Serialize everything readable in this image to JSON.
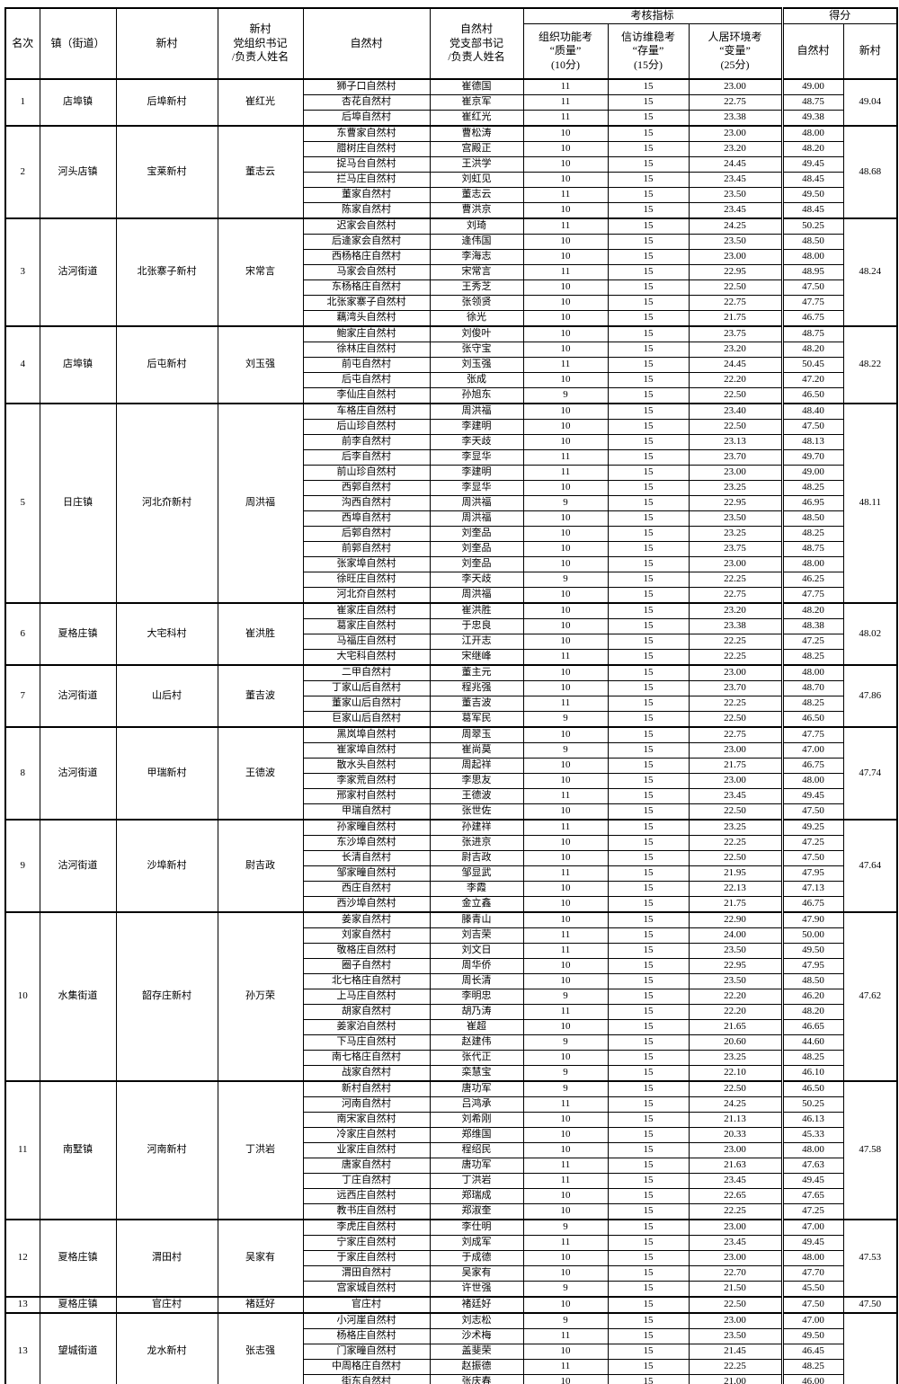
{
  "table": {
    "header": {
      "rank": "名次",
      "town": "镇（街道）",
      "new_village": "新村",
      "new_village_secretary": "新村\n党组织书记\n/负责人姓名",
      "natural_village": "自然村",
      "natural_village_secretary": "自然村\n党支部书记\n/负责人姓名",
      "assessment_group": "考核指标",
      "score_group": "得分",
      "metric_quality": "组织功能考\n“质量”\n(10分)",
      "metric_stability": "信访维稳考\n“存量”\n(15分)",
      "metric_environment": "人居环境考\n“变量”\n(25分)",
      "score_natural": "自然村",
      "score_new": "新村"
    },
    "groups": [
      {
        "rank": "1",
        "town": "店埠镇",
        "nv": "后埠新村",
        "nv_sec": "崔红光",
        "nv_score": "49.04",
        "villages": [
          {
            "name": "狮子口自然村",
            "sec": "崔德国",
            "m1": "11",
            "m2": "15",
            "m3": "23.00",
            "score": "49.00"
          },
          {
            "name": "杏花自然村",
            "sec": "崔京军",
            "m1": "11",
            "m2": "15",
            "m3": "22.75",
            "score": "48.75"
          },
          {
            "name": "后埠自然村",
            "sec": "崔红光",
            "m1": "11",
            "m2": "15",
            "m3": "23.38",
            "score": "49.38"
          }
        ]
      },
      {
        "rank": "2",
        "town": "河头店镇",
        "nv": "宝莱新村",
        "nv_sec": "董志云",
        "nv_score": "48.68",
        "villages": [
          {
            "name": "东曹家自然村",
            "sec": "曹松涛",
            "m1": "10",
            "m2": "15",
            "m3": "23.00",
            "score": "48.00"
          },
          {
            "name": "腊树庄自然村",
            "sec": "宫殿正",
            "m1": "10",
            "m2": "15",
            "m3": "23.20",
            "score": "48.20"
          },
          {
            "name": "捉马台自然村",
            "sec": "王洪学",
            "m1": "10",
            "m2": "15",
            "m3": "24.45",
            "score": "49.45"
          },
          {
            "name": "拦马庄自然村",
            "sec": "刘虹见",
            "m1": "10",
            "m2": "15",
            "m3": "23.45",
            "score": "48.45"
          },
          {
            "name": "董家自然村",
            "sec": "董志云",
            "m1": "11",
            "m2": "15",
            "m3": "23.50",
            "score": "49.50"
          },
          {
            "name": "陈家自然村",
            "sec": "曹洪京",
            "m1": "10",
            "m2": "15",
            "m3": "23.45",
            "score": "48.45"
          }
        ]
      },
      {
        "rank": "3",
        "town": "沽河街道",
        "nv": "北张寨子新村",
        "nv_sec": "宋常言",
        "nv_score": "48.24",
        "villages": [
          {
            "name": "迟家会自然村",
            "sec": "刘琦",
            "m1": "11",
            "m2": "15",
            "m3": "24.25",
            "score": "50.25"
          },
          {
            "name": "后逄家会自然村",
            "sec": "逄伟国",
            "m1": "10",
            "m2": "15",
            "m3": "23.50",
            "score": "48.50"
          },
          {
            "name": "西杨格庄自然村",
            "sec": "李海志",
            "m1": "10",
            "m2": "15",
            "m3": "23.00",
            "score": "48.00"
          },
          {
            "name": "马家会自然村",
            "sec": "宋常言",
            "m1": "11",
            "m2": "15",
            "m3": "22.95",
            "score": "48.95"
          },
          {
            "name": "东杨格庄自然村",
            "sec": "王秀芝",
            "m1": "10",
            "m2": "15",
            "m3": "22.50",
            "score": "47.50"
          },
          {
            "name": "北张家寨子自然村",
            "sec": "张领贤",
            "m1": "10",
            "m2": "15",
            "m3": "22.75",
            "score": "47.75"
          },
          {
            "name": "藕湾头自然村",
            "sec": "徐光",
            "m1": "10",
            "m2": "15",
            "m3": "21.75",
            "score": "46.75"
          }
        ]
      },
      {
        "rank": "4",
        "town": "店埠镇",
        "nv": "后屯新村",
        "nv_sec": "刘玉强",
        "nv_score": "48.22",
        "villages": [
          {
            "name": "鲍家庄自然村",
            "sec": "刘俊叶",
            "m1": "10",
            "m2": "15",
            "m3": "23.75",
            "score": "48.75"
          },
          {
            "name": "徐林庄自然村",
            "sec": "张守宝",
            "m1": "10",
            "m2": "15",
            "m3": "23.20",
            "score": "48.20"
          },
          {
            "name": "前屯自然村",
            "sec": "刘玉强",
            "m1": "11",
            "m2": "15",
            "m3": "24.45",
            "score": "50.45"
          },
          {
            "name": "后屯自然村",
            "sec": "张成",
            "m1": "10",
            "m2": "15",
            "m3": "22.20",
            "score": "47.20"
          },
          {
            "name": "李仙庄自然村",
            "sec": "孙旭东",
            "m1": "9",
            "m2": "15",
            "m3": "22.50",
            "score": "46.50"
          }
        ]
      },
      {
        "rank": "5",
        "town": "日庄镇",
        "nv": "河北夼新村",
        "nv_sec": "周洪福",
        "nv_score": "48.11",
        "villages": [
          {
            "name": "车格庄自然村",
            "sec": "周洪福",
            "m1": "10",
            "m2": "15",
            "m3": "23.40",
            "score": "48.40"
          },
          {
            "name": "后山珍自然村",
            "sec": "李建明",
            "m1": "10",
            "m2": "15",
            "m3": "22.50",
            "score": "47.50"
          },
          {
            "name": "前李自然村",
            "sec": "李天歧",
            "m1": "10",
            "m2": "15",
            "m3": "23.13",
            "score": "48.13"
          },
          {
            "name": "后李自然村",
            "sec": "李显华",
            "m1": "11",
            "m2": "15",
            "m3": "23.70",
            "score": "49.70"
          },
          {
            "name": "前山珍自然村",
            "sec": "李建明",
            "m1": "11",
            "m2": "15",
            "m3": "23.00",
            "score": "49.00"
          },
          {
            "name": "西郭自然村",
            "sec": "李显华",
            "m1": "10",
            "m2": "15",
            "m3": "23.25",
            "score": "48.25"
          },
          {
            "name": "沟西自然村",
            "sec": "周洪福",
            "m1": "9",
            "m2": "15",
            "m3": "22.95",
            "score": "46.95"
          },
          {
            "name": "西埠自然村",
            "sec": "周洪福",
            "m1": "10",
            "m2": "15",
            "m3": "23.50",
            "score": "48.50"
          },
          {
            "name": "后郭自然村",
            "sec": "刘奎品",
            "m1": "10",
            "m2": "15",
            "m3": "23.25",
            "score": "48.25"
          },
          {
            "name": "前郭自然村",
            "sec": "刘奎品",
            "m1": "10",
            "m2": "15",
            "m3": "23.75",
            "score": "48.75"
          },
          {
            "name": "张家埠自然村",
            "sec": "刘奎品",
            "m1": "10",
            "m2": "15",
            "m3": "23.00",
            "score": "48.00"
          },
          {
            "name": "徐旺庄自然村",
            "sec": "李天歧",
            "m1": "9",
            "m2": "15",
            "m3": "22.25",
            "score": "46.25"
          },
          {
            "name": "河北夼自然村",
            "sec": "周洪福",
            "m1": "10",
            "m2": "15",
            "m3": "22.75",
            "score": "47.75"
          }
        ]
      },
      {
        "rank": "6",
        "town": "夏格庄镇",
        "nv": "大宅科村",
        "nv_sec": "崔洪胜",
        "nv_score": "48.02",
        "villages": [
          {
            "name": "崔家庄自然村",
            "sec": "崔洪胜",
            "m1": "10",
            "m2": "15",
            "m3": "23.20",
            "score": "48.20"
          },
          {
            "name": "葛家庄自然村",
            "sec": "于忠良",
            "m1": "10",
            "m2": "15",
            "m3": "23.38",
            "score": "48.38"
          },
          {
            "name": "马福庄自然村",
            "sec": "江开志",
            "m1": "10",
            "m2": "15",
            "m3": "22.25",
            "score": "47.25"
          },
          {
            "name": "大宅科自然村",
            "sec": "宋继峰",
            "m1": "11",
            "m2": "15",
            "m3": "22.25",
            "score": "48.25"
          }
        ]
      },
      {
        "rank": "7",
        "town": "沽河街道",
        "nv": "山后村",
        "nv_sec": "董吉波",
        "nv_score": "47.86",
        "villages": [
          {
            "name": "二甲自然村",
            "sec": "董主元",
            "m1": "10",
            "m2": "15",
            "m3": "23.00",
            "score": "48.00"
          },
          {
            "name": "丁家山后自然村",
            "sec": "程兆强",
            "m1": "10",
            "m2": "15",
            "m3": "23.70",
            "score": "48.70"
          },
          {
            "name": "董家山后自然村",
            "sec": "董吉波",
            "m1": "11",
            "m2": "15",
            "m3": "22.25",
            "score": "48.25"
          },
          {
            "name": "巨家山后自然村",
            "sec": "葛军民",
            "m1": "9",
            "m2": "15",
            "m3": "22.50",
            "score": "46.50"
          }
        ]
      },
      {
        "rank": "8",
        "town": "沽河街道",
        "nv": "甲瑞新村",
        "nv_sec": "王德波",
        "nv_score": "47.74",
        "villages": [
          {
            "name": "黑岚埠自然村",
            "sec": "周翠玉",
            "m1": "10",
            "m2": "15",
            "m3": "22.75",
            "score": "47.75"
          },
          {
            "name": "崔家埠自然村",
            "sec": "崔尚莫",
            "m1": "9",
            "m2": "15",
            "m3": "23.00",
            "score": "47.00"
          },
          {
            "name": "散水头自然村",
            "sec": "周起祥",
            "m1": "10",
            "m2": "15",
            "m3": "21.75",
            "score": "46.75"
          },
          {
            "name": "李家荒自然村",
            "sec": "李思友",
            "m1": "10",
            "m2": "15",
            "m3": "23.00",
            "score": "48.00"
          },
          {
            "name": "邢家村自然村",
            "sec": "王德波",
            "m1": "11",
            "m2": "15",
            "m3": "23.45",
            "score": "49.45"
          },
          {
            "name": "甲瑞自然村",
            "sec": "张世佐",
            "m1": "10",
            "m2": "15",
            "m3": "22.50",
            "score": "47.50"
          }
        ]
      },
      {
        "rank": "9",
        "town": "沽河街道",
        "nv": "沙埠新村",
        "nv_sec": "尉吉政",
        "nv_score": "47.64",
        "villages": [
          {
            "name": "孙家疃自然村",
            "sec": "孙建祥",
            "m1": "11",
            "m2": "15",
            "m3": "23.25",
            "score": "49.25"
          },
          {
            "name": "东沙埠自然村",
            "sec": "张进京",
            "m1": "10",
            "m2": "15",
            "m3": "22.25",
            "score": "47.25"
          },
          {
            "name": "长清自然村",
            "sec": "尉吉政",
            "m1": "10",
            "m2": "15",
            "m3": "22.50",
            "score": "47.50"
          },
          {
            "name": "邹家疃自然村",
            "sec": "邹显武",
            "m1": "11",
            "m2": "15",
            "m3": "21.95",
            "score": "47.95"
          },
          {
            "name": "西庄自然村",
            "sec": "李霞",
            "m1": "10",
            "m2": "15",
            "m3": "22.13",
            "score": "47.13"
          },
          {
            "name": "西沙埠自然村",
            "sec": "金立鑫",
            "m1": "10",
            "m2": "15",
            "m3": "21.75",
            "score": "46.75"
          }
        ]
      },
      {
        "rank": "10",
        "town": "水集街道",
        "nv": "韶存庄新村",
        "nv_sec": "孙万荣",
        "nv_score": "47.62",
        "villages": [
          {
            "name": "姜家自然村",
            "sec": "滕青山",
            "m1": "10",
            "m2": "15",
            "m3": "22.90",
            "score": "47.90"
          },
          {
            "name": "刘家自然村",
            "sec": "刘吉荣",
            "m1": "11",
            "m2": "15",
            "m3": "24.00",
            "score": "50.00"
          },
          {
            "name": "敬格庄自然村",
            "sec": "刘文日",
            "m1": "11",
            "m2": "15",
            "m3": "23.50",
            "score": "49.50"
          },
          {
            "name": "圈子自然村",
            "sec": "周华侨",
            "m1": "10",
            "m2": "15",
            "m3": "22.95",
            "score": "47.95"
          },
          {
            "name": "北七格庄自然村",
            "sec": "周长清",
            "m1": "10",
            "m2": "15",
            "m3": "23.50",
            "score": "48.50"
          },
          {
            "name": "上马庄自然村",
            "sec": "李明忠",
            "m1": "9",
            "m2": "15",
            "m3": "22.20",
            "score": "46.20"
          },
          {
            "name": "胡家自然村",
            "sec": "胡乃涛",
            "m1": "11",
            "m2": "15",
            "m3": "22.20",
            "score": "48.20"
          },
          {
            "name": "姜家泊自然村",
            "sec": "崔超",
            "m1": "10",
            "m2": "15",
            "m3": "21.65",
            "score": "46.65"
          },
          {
            "name": "下马庄自然村",
            "sec": "赵建伟",
            "m1": "9",
            "m2": "15",
            "m3": "20.60",
            "score": "44.60"
          },
          {
            "name": "南七格庄自然村",
            "sec": "张代正",
            "m1": "10",
            "m2": "15",
            "m3": "23.25",
            "score": "48.25"
          },
          {
            "name": "战家自然村",
            "sec": "栾慧宝",
            "m1": "9",
            "m2": "15",
            "m3": "22.10",
            "score": "46.10"
          }
        ]
      },
      {
        "rank": "11",
        "town": "南墅镇",
        "nv": "河南新村",
        "nv_sec": "丁洪岩",
        "nv_score": "47.58",
        "villages": [
          {
            "name": "新村自然村",
            "sec": "唐功军",
            "m1": "9",
            "m2": "15",
            "m3": "22.50",
            "score": "46.50"
          },
          {
            "name": "河南自然村",
            "sec": "吕鸿承",
            "m1": "11",
            "m2": "15",
            "m3": "24.25",
            "score": "50.25"
          },
          {
            "name": "南宋家自然村",
            "sec": "刘希刚",
            "m1": "10",
            "m2": "15",
            "m3": "21.13",
            "score": "46.13"
          },
          {
            "name": "冷家庄自然村",
            "sec": "郑维国",
            "m1": "10",
            "m2": "15",
            "m3": "20.33",
            "score": "45.33"
          },
          {
            "name": "业家庄自然村",
            "sec": "程绍民",
            "m1": "10",
            "m2": "15",
            "m3": "23.00",
            "score": "48.00"
          },
          {
            "name": "唐家自然村",
            "sec": "唐功军",
            "m1": "11",
            "m2": "15",
            "m3": "21.63",
            "score": "47.63"
          },
          {
            "name": "丁庄自然村",
            "sec": "丁洪岩",
            "m1": "11",
            "m2": "15",
            "m3": "23.45",
            "score": "49.45"
          },
          {
            "name": "远西庄自然村",
            "sec": "郑瑞成",
            "m1": "10",
            "m2": "15",
            "m3": "22.65",
            "score": "47.65"
          },
          {
            "name": "教书庄自然村",
            "sec": "郑淑奎",
            "m1": "10",
            "m2": "15",
            "m3": "22.25",
            "score": "47.25"
          }
        ]
      },
      {
        "rank": "12",
        "town": "夏格庄镇",
        "nv": "渭田村",
        "nv_sec": "吴家有",
        "nv_score": "47.53",
        "villages": [
          {
            "name": "李虎庄自然村",
            "sec": "李仕明",
            "m1": "9",
            "m2": "15",
            "m3": "23.00",
            "score": "47.00"
          },
          {
            "name": "宁家庄自然村",
            "sec": "刘成军",
            "m1": "11",
            "m2": "15",
            "m3": "23.45",
            "score": "49.45"
          },
          {
            "name": "于家庄自然村",
            "sec": "于成德",
            "m1": "10",
            "m2": "15",
            "m3": "23.00",
            "score": "48.00"
          },
          {
            "name": "渭田自然村",
            "sec": "吴家有",
            "m1": "10",
            "m2": "15",
            "m3": "22.70",
            "score": "47.70"
          },
          {
            "name": "宫家城自然村",
            "sec": "许世强",
            "m1": "9",
            "m2": "15",
            "m3": "21.50",
            "score": "45.50"
          }
        ]
      },
      {
        "rank": "13",
        "town": "夏格庄镇",
        "nv": "官庄村",
        "nv_sec": "褚廷好",
        "nv_score": "47.50",
        "villages": [
          {
            "name": "官庄村",
            "sec": "褚廷好",
            "m1": "10",
            "m2": "15",
            "m3": "22.50",
            "score": "47.50"
          }
        ]
      },
      {
        "rank": "13",
        "town": "望城街道",
        "nv": "龙水新村",
        "nv_sec": "张志强",
        "nv_score": "",
        "villages": [
          {
            "name": "小河崖自然村",
            "sec": "刘志松",
            "m1": "9",
            "m2": "15",
            "m3": "23.00",
            "score": "47.00"
          },
          {
            "name": "杨格庄自然村",
            "sec": "沙术梅",
            "m1": "11",
            "m2": "15",
            "m3": "23.50",
            "score": "49.50"
          },
          {
            "name": "门家疃自然村",
            "sec": "盖斐荣",
            "m1": "10",
            "m2": "15",
            "m3": "21.45",
            "score": "46.45"
          },
          {
            "name": "中周格庄自然村",
            "sec": "赵振德",
            "m1": "11",
            "m2": "15",
            "m3": "22.25",
            "score": "48.25"
          },
          {
            "name": "街东自然村",
            "sec": "张庆春",
            "m1": "10",
            "m2": "15",
            "m3": "21.00",
            "score": "46.00"
          }
        ]
      }
    ]
  }
}
